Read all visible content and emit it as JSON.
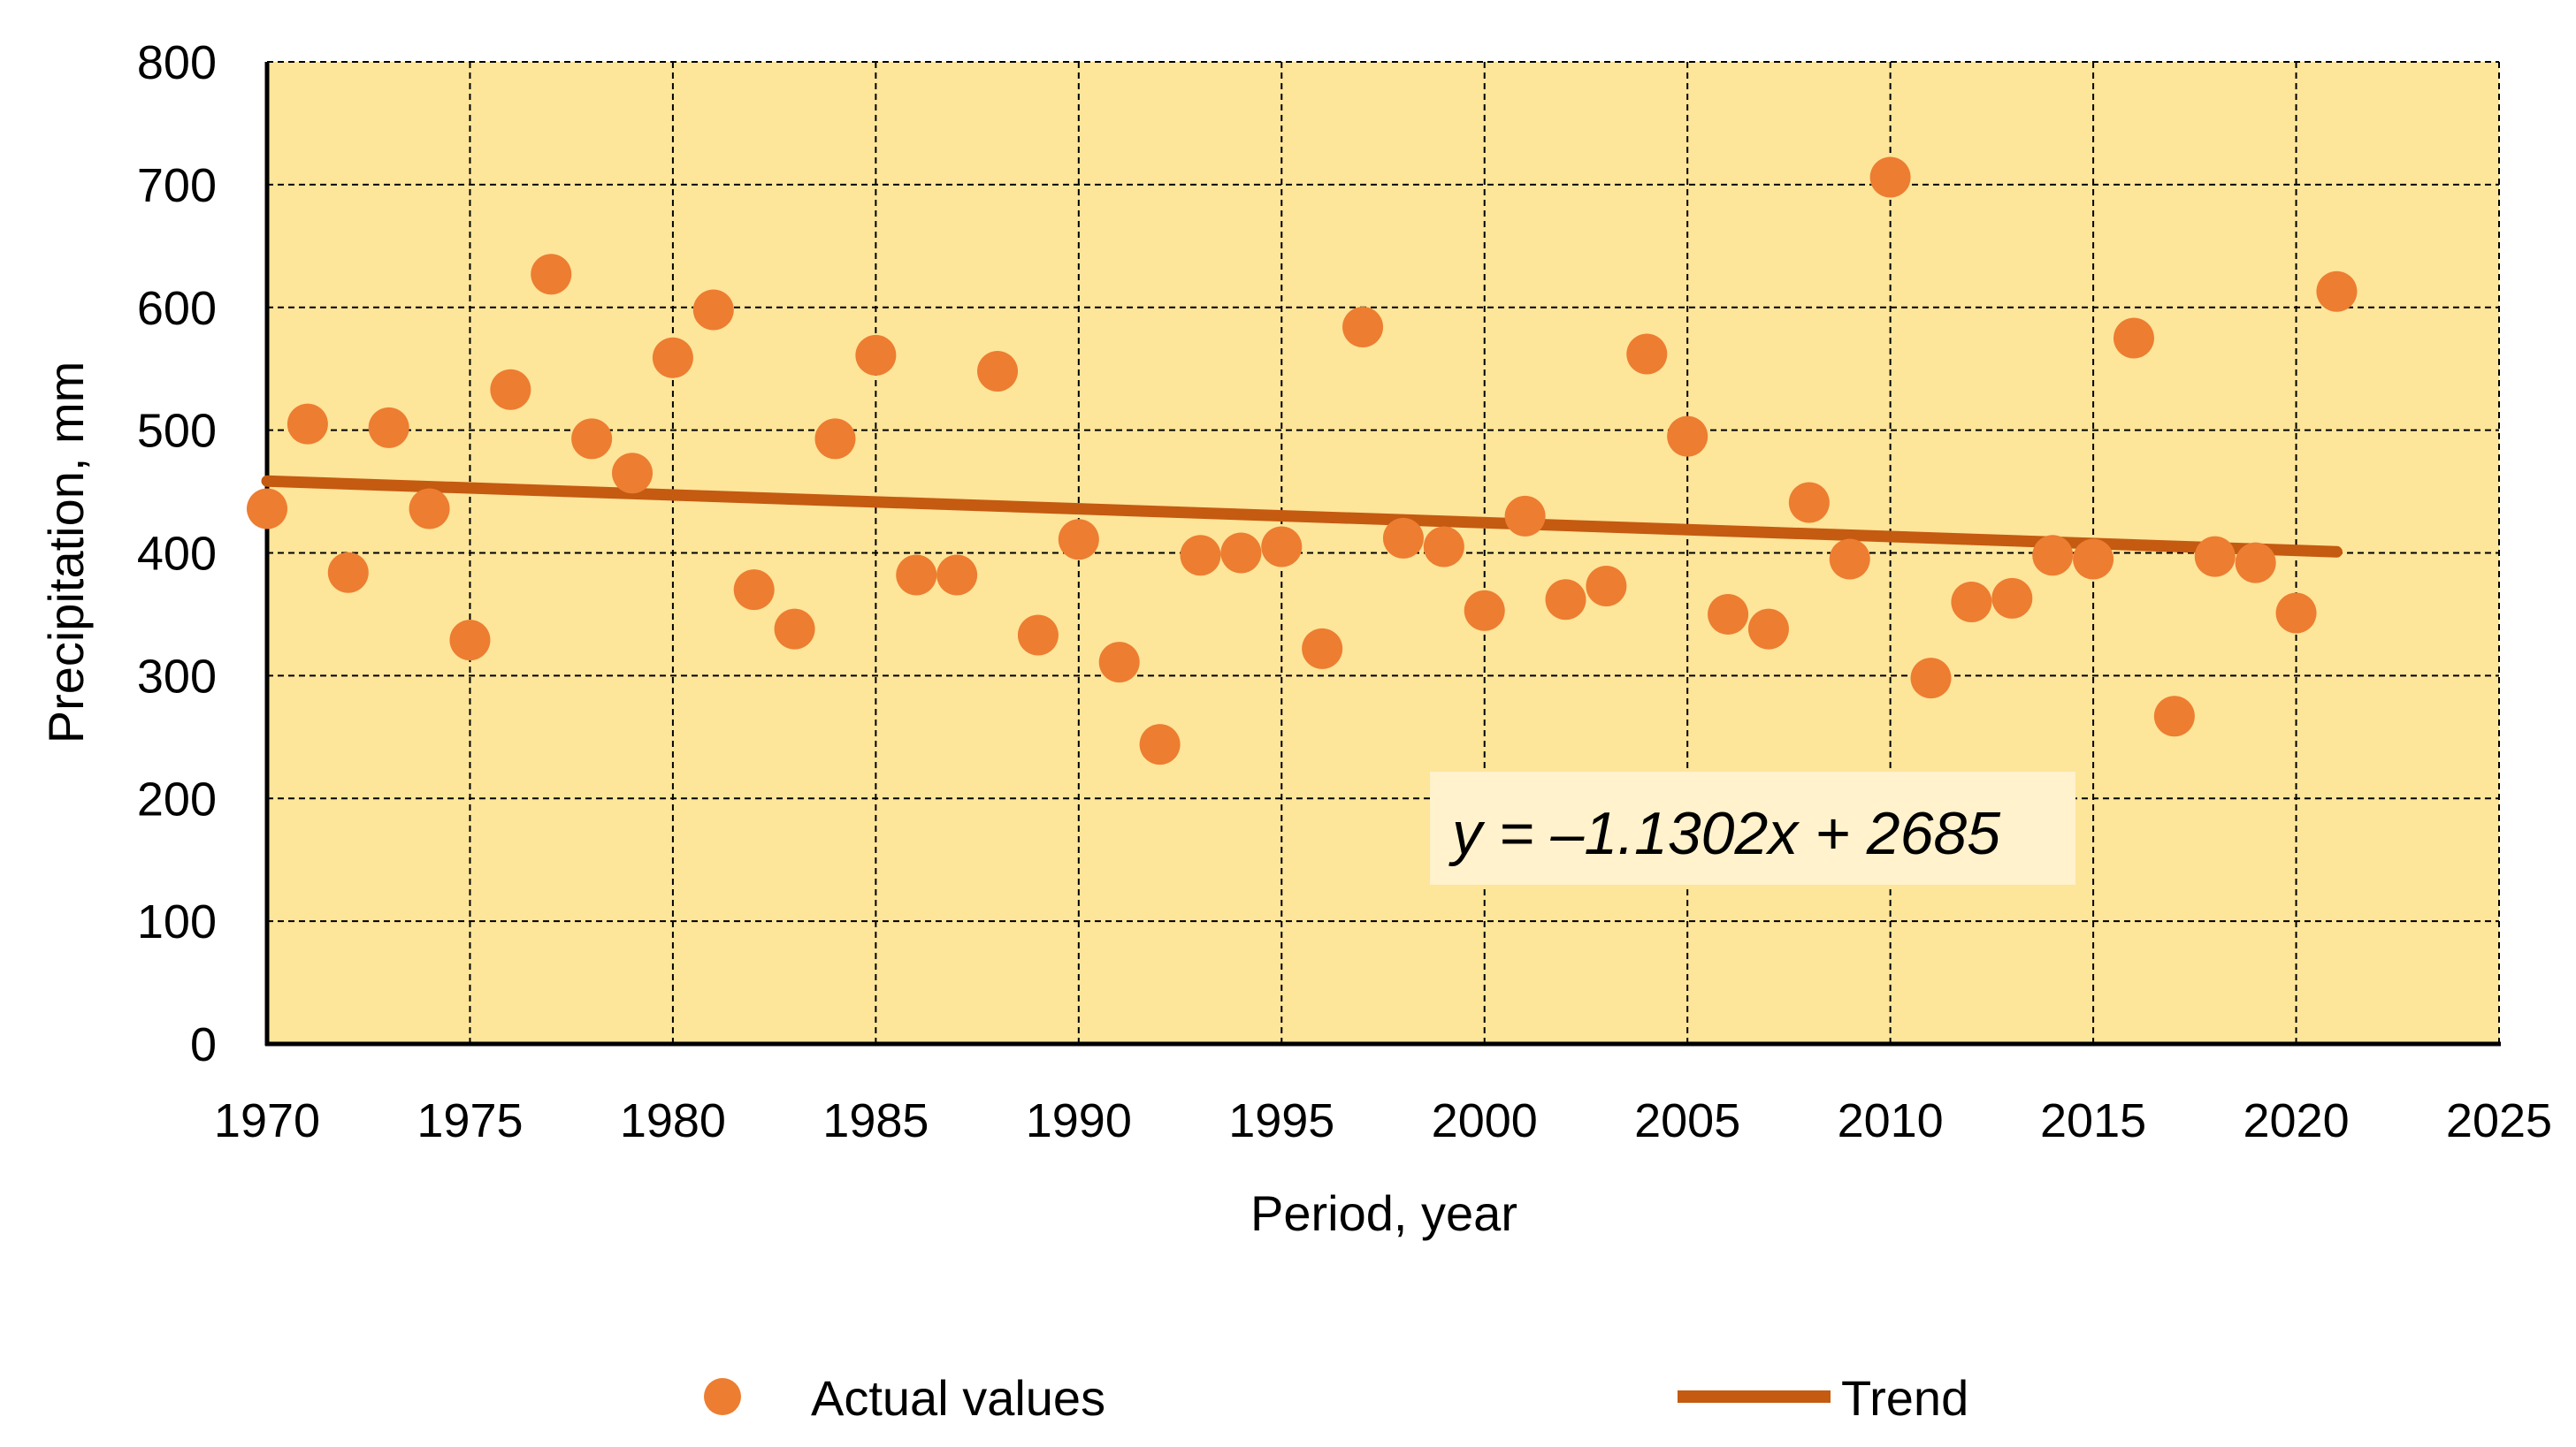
{
  "chart_data": {
    "type": "scatter",
    "xlabel": "Period, year",
    "ylabel": "Precipitation, mm",
    "xlim": [
      1970,
      2025
    ],
    "ylim": [
      0,
      800
    ],
    "x_ticks": [
      1970,
      1975,
      1980,
      1985,
      1990,
      1995,
      2000,
      2005,
      2010,
      2015,
      2020,
      2025
    ],
    "y_ticks": [
      0,
      100,
      200,
      300,
      400,
      500,
      600,
      700,
      800
    ],
    "grid": true,
    "background": "#FDE59A",
    "series": [
      {
        "name": "Actual values",
        "kind": "scatter",
        "color": "#ED7D31",
        "x": [
          1970,
          1971,
          1972,
          1973,
          1974,
          1975,
          1976,
          1977,
          1978,
          1979,
          1980,
          1981,
          1982,
          1983,
          1984,
          1985,
          1986,
          1987,
          1988,
          1989,
          1990,
          1991,
          1992,
          1993,
          1994,
          1995,
          1996,
          1997,
          1998,
          1999,
          2000,
          2001,
          2002,
          2003,
          2004,
          2005,
          2006,
          2007,
          2008,
          2009,
          2010,
          2011,
          2012,
          2013,
          2014,
          2015,
          2016,
          2017,
          2018,
          2019,
          2020,
          2021
        ],
        "y": [
          436,
          505,
          384,
          502,
          436,
          329,
          533,
          627,
          493,
          465,
          559,
          598,
          370,
          338,
          493,
          561,
          382,
          382,
          548,
          333,
          411,
          311,
          244,
          398,
          400,
          405,
          322,
          584,
          412,
          405,
          353,
          430,
          362,
          373,
          562,
          495,
          350,
          338,
          441,
          395,
          706,
          298,
          360,
          363,
          398,
          395,
          575,
          267,
          397,
          392,
          351,
          613
        ]
      },
      {
        "name": "Trend",
        "kind": "line",
        "color": "#C55A11",
        "slope": -1.1302,
        "intercept": 2685,
        "x_range": [
          1970,
          2021
        ]
      }
    ],
    "annotation": {
      "text": "y = –1.1302x + 2685",
      "background": "#FFF2CC"
    },
    "legend": {
      "placement": "bottom",
      "items": [
        {
          "label": "Actual values",
          "marker": "circle",
          "color": "#ED7D31"
        },
        {
          "label": "Trend",
          "marker": "line",
          "color": "#C55A11"
        }
      ]
    }
  }
}
